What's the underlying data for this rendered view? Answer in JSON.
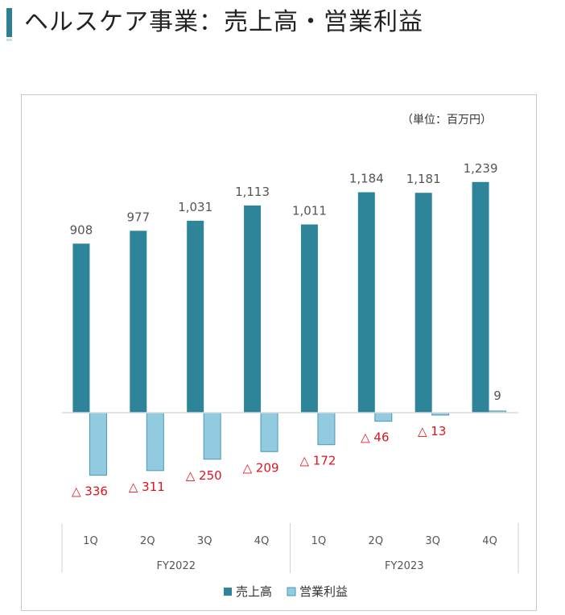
{
  "header": {
    "title": "ヘルスケア事業：売上高・営業利益"
  },
  "chart_data": {
    "type": "bar",
    "unit": "（単位：百万円）",
    "categories": [
      "1Q",
      "2Q",
      "3Q",
      "4Q",
      "1Q",
      "2Q",
      "3Q",
      "4Q"
    ],
    "groups": [
      {
        "label": "FY2022",
        "quarters": [
          "1Q",
          "2Q",
          "3Q",
          "4Q"
        ]
      },
      {
        "label": "FY2023",
        "quarters": [
          "1Q",
          "2Q",
          "3Q",
          "4Q"
        ]
      }
    ],
    "series": [
      {
        "name": "売上高",
        "color": "#2e8599",
        "values": [
          908,
          977,
          1031,
          1113,
          1011,
          1184,
          1181,
          1239
        ],
        "labels": [
          "908",
          "977",
          "1,031",
          "1,113",
          "1,011",
          "1,184",
          "1,181",
          "1,239"
        ]
      },
      {
        "name": "営業利益",
        "color": "#92cbe0",
        "values": [
          -336,
          -311,
          -250,
          -209,
          -172,
          -46,
          -13,
          9
        ],
        "labels": [
          "△ 336",
          "△ 311",
          "△ 250",
          "△ 209",
          "△ 172",
          "△ 46",
          "△ 13",
          "9"
        ]
      }
    ],
    "legend_position": "bottom",
    "grid": false
  }
}
